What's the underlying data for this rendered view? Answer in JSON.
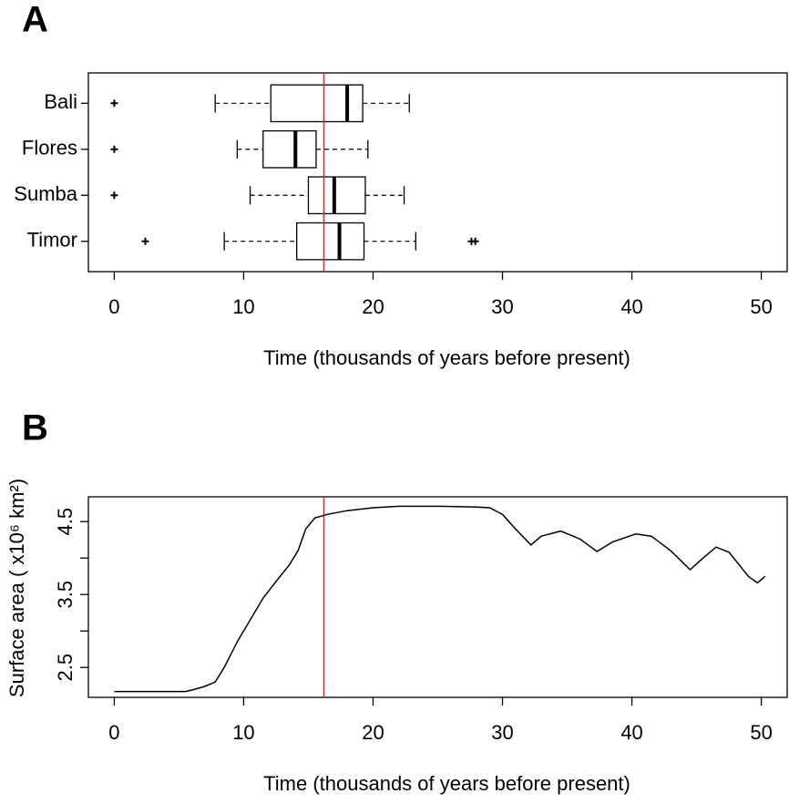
{
  "chart_data": [
    {
      "type": "box",
      "label": "A",
      "categories": [
        "Bali",
        "Flores",
        "Sumba",
        "Timor"
      ],
      "whisker_low": [
        7.8,
        9.5,
        10.5,
        8.5
      ],
      "q1": [
        12.1,
        11.5,
        15.0,
        14.1
      ],
      "median": [
        18.0,
        14.0,
        17.0,
        17.4
      ],
      "q3": [
        19.2,
        15.6,
        19.4,
        19.3
      ],
      "whisker_high": [
        22.8,
        19.6,
        22.4,
        23.3
      ],
      "outliers": [
        [
          0
        ],
        [
          0
        ],
        [
          0
        ],
        [
          2.4,
          27.6,
          27.9
        ]
      ],
      "xlabel": "Time (thousands of years before present)",
      "xlim": [
        -2,
        52
      ],
      "xticks": [
        0,
        10,
        20,
        30,
        40,
        50
      ],
      "reference_line": {
        "value": 16.2,
        "color": "#e8202a"
      },
      "color": "#000000"
    },
    {
      "type": "line",
      "label": "B",
      "x": [
        0,
        5.5,
        6,
        7,
        7.8,
        8.5,
        9.5,
        10.5,
        11.5,
        12.5,
        13.5,
        14.2,
        14.8,
        15.5,
        16.5,
        18,
        20,
        22,
        25,
        28,
        29,
        30,
        31,
        32.2,
        33,
        34.5,
        36,
        37.3,
        38.5,
        40.3,
        41.5,
        43,
        44.5,
        45.5,
        46.5,
        47.5,
        49,
        49.7,
        50.3
      ],
      "values": [
        2.17,
        2.17,
        2.19,
        2.24,
        2.3,
        2.5,
        2.85,
        3.15,
        3.45,
        3.68,
        3.9,
        4.1,
        4.4,
        4.55,
        4.6,
        4.65,
        4.69,
        4.71,
        4.71,
        4.7,
        4.69,
        4.6,
        4.4,
        4.18,
        4.3,
        4.37,
        4.26,
        4.09,
        4.22,
        4.33,
        4.3,
        4.1,
        3.84,
        4.0,
        4.15,
        4.08,
        3.75,
        3.66,
        3.75
      ],
      "xlabel": "Time (thousands of years before present)",
      "ylabel": "Surface area ( x10⁶ km²)",
      "xlim": [
        -2,
        52
      ],
      "xticks": [
        0,
        10,
        20,
        30,
        40,
        50
      ],
      "ylim": [
        2.09,
        4.84
      ],
      "yticks": [
        2.5,
        3.5,
        4.5
      ],
      "yminorticks": [
        3,
        4
      ],
      "reference_line": {
        "value": 16.2,
        "color": "#e8202a"
      },
      "color": "#000000"
    }
  ]
}
